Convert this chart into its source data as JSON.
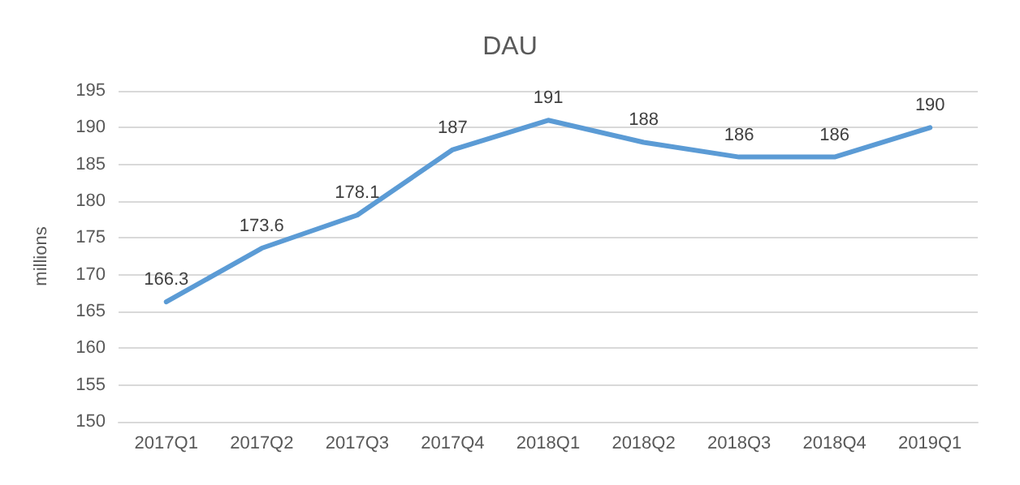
{
  "chart_data": {
    "type": "line",
    "title": "DAU",
    "ylabel": "millions",
    "categories": [
      "2017Q1",
      "2017Q2",
      "2017Q3",
      "2017Q4",
      "2018Q1",
      "2018Q2",
      "2018Q3",
      "2018Q4",
      "2019Q1"
    ],
    "series": [
      {
        "color": "#5b9bd5",
        "values": [
          166.3,
          173.6,
          178.1,
          187,
          191,
          188,
          186,
          186,
          190
        ]
      }
    ],
    "ylim": [
      150,
      195
    ],
    "yticks": [
      150,
      155,
      160,
      165,
      170,
      175,
      180,
      185,
      190,
      195
    ],
    "grid": "y",
    "data_labels": true,
    "marker": "none",
    "line_style": "solid"
  }
}
